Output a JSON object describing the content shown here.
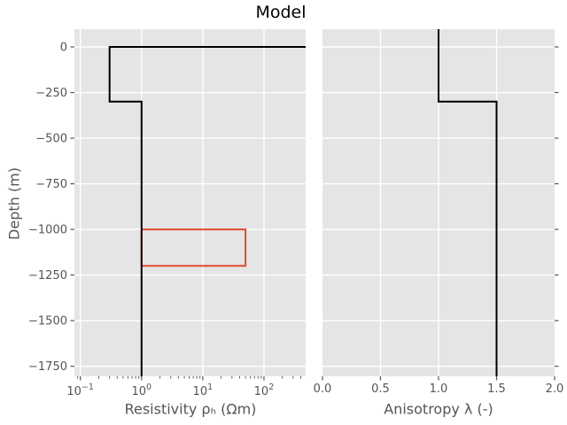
{
  "figure": {
    "title": "Model"
  },
  "style": {
    "figure_background": "#ffffff",
    "axes_background": "#e5e5e5",
    "grid_color": "#ffffff",
    "tick_color": "#555555",
    "label_color": "#555555",
    "title_color": "#000000",
    "profile_color": "#000000",
    "target_color": "#e24a33"
  },
  "chart_data": [
    {
      "type": "line",
      "name": "resistivity-panel",
      "xlabel": "Resistivity ρₕ (Ωm)",
      "ylabel": "Depth (m)",
      "xscale": "log",
      "xlim": [
        0.08,
        480
      ],
      "ylim": [
        -1805,
        97
      ],
      "grid": true,
      "legend": "none",
      "ytick_side": "left",
      "xticks": [
        {
          "value": 0.1,
          "base": "10",
          "exp": "−1"
        },
        {
          "value": 1,
          "base": "10",
          "exp": "0"
        },
        {
          "value": 10,
          "base": "10",
          "exp": "1"
        },
        {
          "value": 100,
          "base": "10",
          "exp": "2"
        }
      ],
      "yticks": [
        {
          "value": 0,
          "label": "0"
        },
        {
          "value": -250,
          "label": "−250"
        },
        {
          "value": -500,
          "label": "−500"
        },
        {
          "value": -750,
          "label": "−750"
        },
        {
          "value": -1000,
          "label": "−1000"
        },
        {
          "value": -1250,
          "label": "−1250"
        },
        {
          "value": -1500,
          "label": "−1500"
        },
        {
          "value": -1750,
          "label": "−1750"
        }
      ],
      "series": [
        {
          "name": "target-resistivity",
          "color": "#e24a33",
          "line_width": 2,
          "points": [
            [
              1,
              -1000
            ],
            [
              50,
              -1000
            ],
            [
              50,
              -1200
            ],
            [
              1,
              -1200
            ],
            [
              1,
              -1000
            ]
          ]
        },
        {
          "name": "resistivity-profile",
          "color": "#000000",
          "line_width": 2,
          "points": [
            [
              480,
              0
            ],
            [
              0.3,
              0
            ],
            [
              0.3,
              -300
            ],
            [
              1,
              -300
            ],
            [
              1,
              -1805
            ]
          ]
        }
      ]
    },
    {
      "type": "line",
      "name": "anisotropy-panel",
      "xlabel": "Anisotropy λ (-)",
      "ylabel": "",
      "xscale": "linear",
      "xlim": [
        0,
        2
      ],
      "ylim": [
        -1805,
        97
      ],
      "grid": true,
      "legend": "none",
      "ytick_side": "right",
      "xticks": [
        {
          "value": 0,
          "label": "0.0"
        },
        {
          "value": 0.5,
          "label": "0.5"
        },
        {
          "value": 1,
          "label": "1.0"
        },
        {
          "value": 1.5,
          "label": "1.5"
        },
        {
          "value": 2,
          "label": "2.0"
        }
      ],
      "yticks": [
        {
          "value": 0
        },
        {
          "value": -250
        },
        {
          "value": -500
        },
        {
          "value": -750
        },
        {
          "value": -1000
        },
        {
          "value": -1250
        },
        {
          "value": -1500
        },
        {
          "value": -1750
        }
      ],
      "series": [
        {
          "name": "anisotropy-profile",
          "color": "#000000",
          "line_width": 2,
          "points": [
            [
              1,
              97
            ],
            [
              1,
              -300
            ],
            [
              1.5,
              -300
            ],
            [
              1.5,
              -1805
            ]
          ]
        }
      ]
    }
  ]
}
